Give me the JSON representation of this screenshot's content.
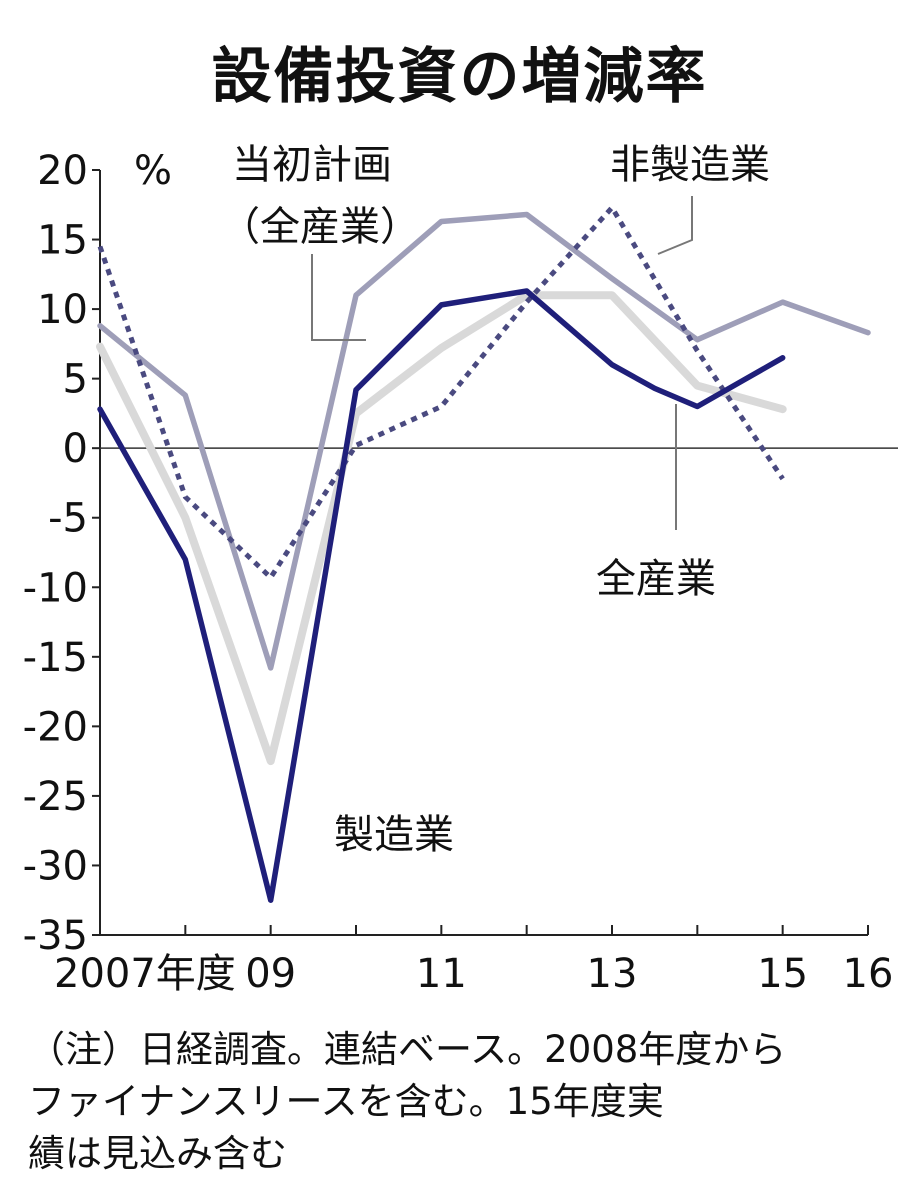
{
  "chart_data": {
    "type": "line",
    "title": "設備投資の増減率",
    "ylabel": "%",
    "ylim": [
      -35,
      20
    ],
    "yticks": [
      20,
      15,
      10,
      5,
      0,
      -5,
      -10,
      -15,
      -20,
      -25,
      -30,
      -35
    ],
    "xlim": [
      2007,
      2016
    ],
    "x_tick_labels": [
      {
        "x": 2007,
        "label": "2007年度"
      },
      {
        "x": 2009,
        "label": "09"
      },
      {
        "x": 2011,
        "label": "11"
      },
      {
        "x": 2013,
        "label": "13"
      },
      {
        "x": 2015,
        "label": "15"
      },
      {
        "x": 2016,
        "label": "16"
      }
    ],
    "series": [
      {
        "name": "当初計画（全産業）",
        "color": "#9e9eb8",
        "style": "solid",
        "points": [
          [
            2007,
            8.8
          ],
          [
            2008,
            3.8
          ],
          [
            2009,
            -15.8
          ],
          [
            2010,
            11.0
          ],
          [
            2011,
            16.3
          ],
          [
            2012,
            16.8
          ],
          [
            2013,
            12.2
          ],
          [
            2014,
            7.8
          ],
          [
            2015,
            10.5
          ],
          [
            2016,
            8.3
          ]
        ]
      },
      {
        "name": "全産業",
        "color": "#d9d9d9",
        "style": "solid",
        "points": [
          [
            2007,
            7.3
          ],
          [
            2008,
            -5.0
          ],
          [
            2009,
            -22.5
          ],
          [
            2010,
            2.5
          ],
          [
            2011,
            7.2
          ],
          [
            2012,
            11.0
          ],
          [
            2013,
            11.0
          ],
          [
            2014,
            4.5
          ],
          [
            2015,
            2.8
          ]
        ]
      },
      {
        "name": "製造業",
        "color": "#1f1f7a",
        "style": "solid",
        "points": [
          [
            2007,
            2.8
          ],
          [
            2008,
            -8.0
          ],
          [
            2009,
            -32.5
          ],
          [
            2010,
            4.2
          ],
          [
            2011,
            10.3
          ],
          [
            2012,
            11.3
          ],
          [
            2013,
            6.0
          ],
          [
            2013.5,
            4.3
          ],
          [
            2014,
            3.0
          ],
          [
            2015,
            6.5
          ]
        ]
      },
      {
        "name": "非製造業",
        "color": "#4a4a80",
        "style": "dotted",
        "points": [
          [
            2007,
            14.5
          ],
          [
            2008,
            -3.5
          ],
          [
            2009,
            -9.3
          ],
          [
            2010,
            0.2
          ],
          [
            2011,
            3.0
          ],
          [
            2012,
            10.5
          ],
          [
            2013,
            17.3
          ],
          [
            2014,
            7.0
          ],
          [
            2015,
            -2.2
          ]
        ]
      }
    ],
    "series_labels": [
      "当初計画",
      "（全産業）",
      "非製造業",
      "全産業",
      "製造業"
    ],
    "zero_line": true
  },
  "note_lines": [
    "（注）日経調査。連結ベース。2008年度から",
    "ファイナンスリースを含む。15年度実",
    "績は見込み含む"
  ]
}
